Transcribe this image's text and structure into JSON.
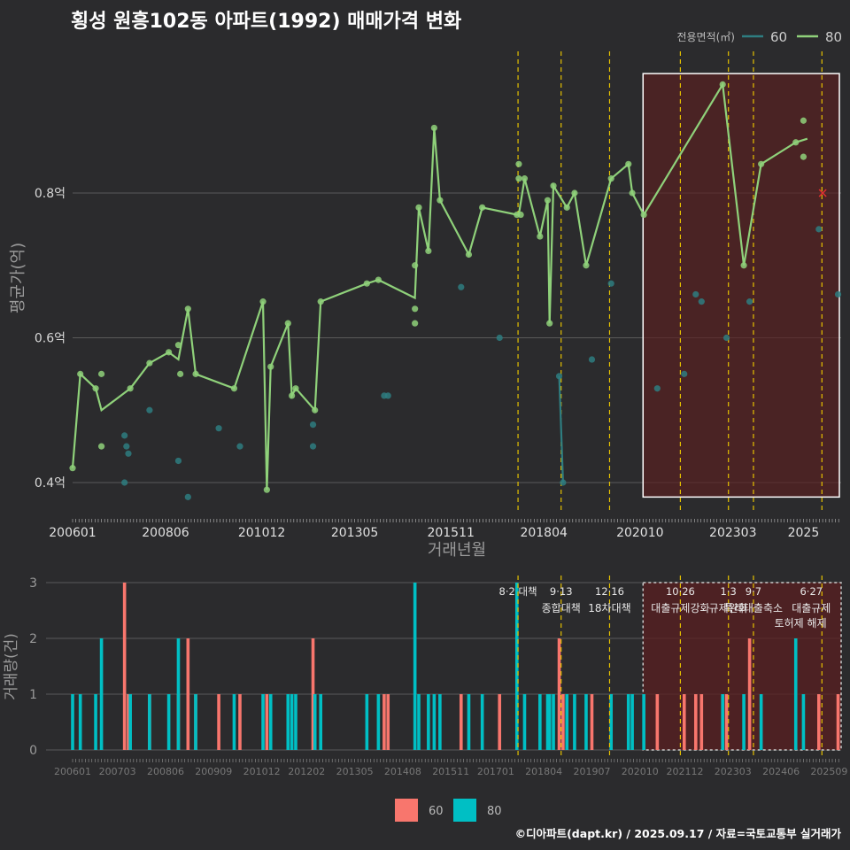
{
  "title": "횡성 원흥102동 아파트(1992) 매매가격 변화",
  "credit": "©디아파트(dapt.kr) / 2025.09.17 / 자료=국토교통부 실거래가",
  "colors": {
    "s60": "#2e7d80",
    "s80": "#8fd17a",
    "bar60": "#f8766d",
    "bar80": "#00bfc4",
    "policy": "#e6c200",
    "highlight": "#5a1f20"
  },
  "chart_data": [
    {
      "type": "line",
      "title": "횡성 원흥102동 아파트(1992) 매매가격 변화",
      "xlabel": "거래년월",
      "ylabel": "평균가(억)",
      "x_tick_labels": [
        "200601",
        "200806",
        "201012",
        "201305",
        "201511",
        "201804",
        "202010",
        "202303",
        "2025"
      ],
      "y_tick_labels": [
        "0.4억",
        "0.6억",
        "0.8억"
      ],
      "ylim": [
        0.35,
        0.98
      ],
      "legend_title": "전용면적(㎡)",
      "legend_position": "top-right",
      "series": [
        {
          "name": "60",
          "points": [
            [
              2007.35,
              0.4
            ],
            [
              2007.35,
              0.465
            ],
            [
              2007.4,
              0.45
            ],
            [
              2007.45,
              0.44
            ],
            [
              2008.0,
              0.5
            ],
            [
              2008.75,
              0.43
            ],
            [
              2009.0,
              0.38
            ],
            [
              2009.8,
              0.475
            ],
            [
              2010.35,
              0.45
            ],
            [
              2012.25,
              0.45
            ],
            [
              2012.25,
              0.48
            ],
            [
              2014.1,
              0.52
            ],
            [
              2014.2,
              0.52
            ],
            [
              2016.1,
              0.67
            ],
            [
              2017.1,
              0.6
            ],
            [
              2018.65,
              0.547
            ],
            [
              2018.75,
              0.4
            ],
            [
              2019.5,
              0.57
            ],
            [
              2020.0,
              0.675
            ],
            [
              2021.2,
              0.53
            ],
            [
              2021.9,
              0.55
            ],
            [
              2022.2,
              0.66
            ],
            [
              2022.35,
              0.65
            ],
            [
              2023.0,
              0.6
            ],
            [
              2023.6,
              0.65
            ],
            [
              2025.4,
              0.75
            ],
            [
              2025.9,
              0.66
            ]
          ],
          "line": [
            [
              2018.65,
              0.547
            ],
            [
              2018.75,
              0.4
            ]
          ]
        },
        {
          "name": "80",
          "points": [
            [
              2006.0,
              0.42
            ],
            [
              2006.2,
              0.55
            ],
            [
              2006.6,
              0.53
            ],
            [
              2006.75,
              0.55
            ],
            [
              2006.75,
              0.45
            ],
            [
              2007.5,
              0.53
            ],
            [
              2008.0,
              0.565
            ],
            [
              2008.5,
              0.58
            ],
            [
              2008.75,
              0.59
            ],
            [
              2008.8,
              0.55
            ],
            [
              2009.0,
              0.64
            ],
            [
              2009.2,
              0.55
            ],
            [
              2010.2,
              0.53
            ],
            [
              2010.95,
              0.65
            ],
            [
              2011.05,
              0.39
            ],
            [
              2011.15,
              0.56
            ],
            [
              2011.6,
              0.62
            ],
            [
              2011.7,
              0.52
            ],
            [
              2011.8,
              0.53
            ],
            [
              2012.3,
              0.5
            ],
            [
              2012.45,
              0.65
            ],
            [
              2013.65,
              0.675
            ],
            [
              2013.95,
              0.68
            ],
            [
              2014.9,
              0.7
            ],
            [
              2014.9,
              0.64
            ],
            [
              2014.9,
              0.62
            ],
            [
              2015.0,
              0.78
            ],
            [
              2015.25,
              0.72
            ],
            [
              2015.4,
              0.89
            ],
            [
              2015.55,
              0.79
            ],
            [
              2016.3,
              0.715
            ],
            [
              2016.65,
              0.78
            ],
            [
              2017.55,
              0.77
            ],
            [
              2017.6,
              0.82
            ],
            [
              2017.6,
              0.84
            ],
            [
              2017.75,
              0.82
            ],
            [
              2017.65,
              0.77
            ],
            [
              2018.15,
              0.74
            ],
            [
              2018.35,
              0.79
            ],
            [
              2018.4,
              0.62
            ],
            [
              2018.5,
              0.81
            ],
            [
              2018.85,
              0.78
            ],
            [
              2019.05,
              0.8
            ],
            [
              2019.35,
              0.7
            ],
            [
              2020.0,
              0.82
            ],
            [
              2020.45,
              0.84
            ],
            [
              2020.55,
              0.8
            ],
            [
              2020.85,
              0.77
            ],
            [
              2022.9,
              0.95
            ],
            [
              2023.45,
              0.7
            ],
            [
              2023.9,
              0.84
            ],
            [
              2024.8,
              0.87
            ],
            [
              2025.0,
              0.9
            ],
            [
              2025.0,
              0.85
            ]
          ],
          "line": [
            [
              2006.0,
              0.42
            ],
            [
              2006.2,
              0.55
            ],
            [
              2006.6,
              0.53
            ],
            [
              2006.75,
              0.5
            ],
            [
              2007.5,
              0.53
            ],
            [
              2008.0,
              0.565
            ],
            [
              2008.5,
              0.58
            ],
            [
              2008.75,
              0.57
            ],
            [
              2009.0,
              0.64
            ],
            [
              2009.2,
              0.55
            ],
            [
              2010.2,
              0.53
            ],
            [
              2010.95,
              0.65
            ],
            [
              2011.05,
              0.39
            ],
            [
              2011.15,
              0.56
            ],
            [
              2011.6,
              0.62
            ],
            [
              2011.7,
              0.52
            ],
            [
              2011.8,
              0.53
            ],
            [
              2012.3,
              0.5
            ],
            [
              2012.45,
              0.65
            ],
            [
              2013.65,
              0.675
            ],
            [
              2013.95,
              0.68
            ],
            [
              2014.9,
              0.655
            ],
            [
              2015.0,
              0.78
            ],
            [
              2015.25,
              0.72
            ],
            [
              2015.4,
              0.89
            ],
            [
              2015.55,
              0.79
            ],
            [
              2016.3,
              0.715
            ],
            [
              2016.65,
              0.78
            ],
            [
              2017.55,
              0.77
            ],
            [
              2017.6,
              0.77
            ],
            [
              2017.75,
              0.82
            ],
            [
              2018.15,
              0.74
            ],
            [
              2018.35,
              0.79
            ],
            [
              2018.4,
              0.62
            ],
            [
              2018.5,
              0.81
            ],
            [
              2018.85,
              0.78
            ],
            [
              2019.05,
              0.8
            ],
            [
              2019.35,
              0.7
            ],
            [
              2020.0,
              0.82
            ],
            [
              2020.45,
              0.84
            ],
            [
              2020.55,
              0.8
            ],
            [
              2020.85,
              0.77
            ],
            [
              2022.9,
              0.95
            ],
            [
              2023.45,
              0.7
            ],
            [
              2023.9,
              0.84
            ],
            [
              2024.8,
              0.87
            ],
            [
              2025.1,
              0.875
            ]
          ]
        }
      ],
      "policy_lines": [
        2017.58,
        2018.7,
        2019.96,
        2021.8,
        2023.05,
        2023.7,
        2025.48
      ],
      "highlight_range": [
        2020.83,
        2025.98
      ],
      "highlight_ylim": [
        0.38,
        0.965
      ],
      "marker_x": {
        "x": 2025.5,
        "y": 0.8
      }
    },
    {
      "type": "bar",
      "xlabel": "",
      "ylabel": "거래량(건)",
      "ylim": [
        0,
        3
      ],
      "y_tick_labels": [
        "0",
        "1",
        "2",
        "3"
      ],
      "x_tick_labels": [
        "200601",
        "200703",
        "200806",
        "200909",
        "201012",
        "201202",
        "201305",
        "201408",
        "201511",
        "201701",
        "201804",
        "201907",
        "202010",
        "202112",
        "202303",
        "202406",
        "202509"
      ],
      "legend": [
        "60",
        "80"
      ],
      "legend_position": "bottom",
      "series": [
        {
          "name": "60",
          "bars": [
            [
              2007.35,
              3
            ],
            [
              2007.45,
              1
            ],
            [
              2008.0,
              1
            ],
            [
              2008.75,
              1
            ],
            [
              2009.0,
              2
            ],
            [
              2009.2,
              1
            ],
            [
              2009.8,
              1
            ],
            [
              2010.35,
              1
            ],
            [
              2011.05,
              1
            ],
            [
              2012.25,
              2
            ],
            [
              2014.1,
              1
            ],
            [
              2014.2,
              1
            ],
            [
              2016.1,
              1
            ],
            [
              2017.1,
              1
            ],
            [
              2018.65,
              2
            ],
            [
              2018.75,
              1
            ],
            [
              2019.5,
              1
            ],
            [
              2020.0,
              1
            ],
            [
              2021.2,
              1
            ],
            [
              2021.9,
              1
            ],
            [
              2022.2,
              1
            ],
            [
              2022.35,
              1
            ],
            [
              2023.0,
              1
            ],
            [
              2023.6,
              2
            ],
            [
              2025.4,
              1
            ],
            [
              2025.9,
              1
            ]
          ]
        },
        {
          "name": "80",
          "bars": [
            [
              2006.0,
              1
            ],
            [
              2006.2,
              1
            ],
            [
              2006.6,
              1
            ],
            [
              2006.75,
              2
            ],
            [
              2007.5,
              1
            ],
            [
              2008.0,
              1
            ],
            [
              2008.5,
              1
            ],
            [
              2008.75,
              2
            ],
            [
              2009.2,
              1
            ],
            [
              2010.2,
              1
            ],
            [
              2010.95,
              1
            ],
            [
              2011.15,
              1
            ],
            [
              2011.6,
              1
            ],
            [
              2011.7,
              1
            ],
            [
              2011.8,
              1
            ],
            [
              2012.3,
              1
            ],
            [
              2012.45,
              1
            ],
            [
              2013.65,
              1
            ],
            [
              2013.95,
              1
            ],
            [
              2014.9,
              3
            ],
            [
              2015.0,
              1
            ],
            [
              2015.25,
              1
            ],
            [
              2015.4,
              1
            ],
            [
              2015.55,
              1
            ],
            [
              2016.3,
              1
            ],
            [
              2016.65,
              1
            ],
            [
              2017.55,
              3
            ],
            [
              2017.75,
              1
            ],
            [
              2018.15,
              1
            ],
            [
              2018.35,
              1
            ],
            [
              2018.4,
              1
            ],
            [
              2018.5,
              1
            ],
            [
              2018.85,
              1
            ],
            [
              2019.05,
              1
            ],
            [
              2019.35,
              1
            ],
            [
              2020.0,
              1
            ],
            [
              2020.45,
              1
            ],
            [
              2020.55,
              1
            ],
            [
              2020.85,
              1
            ],
            [
              2022.9,
              1
            ],
            [
              2023.45,
              1
            ],
            [
              2023.9,
              1
            ],
            [
              2024.8,
              2
            ],
            [
              2025.0,
              1
            ]
          ]
        }
      ],
      "policy_lines": [
        2017.58,
        2018.7,
        2019.96,
        2021.8,
        2023.05,
        2023.7,
        2025.48
      ],
      "policy_labels": [
        {
          "x": 2017.58,
          "date": "8·2 대책",
          "name": ""
        },
        {
          "x": 2018.7,
          "date": "9·13",
          "name": "종합대책"
        },
        {
          "x": 2019.96,
          "date": "12·16",
          "name": "18차대책"
        },
        {
          "x": 2021.8,
          "date": "10·26",
          "name": "대출규제강화"
        },
        {
          "x": 2023.05,
          "date": "1·3",
          "name": "규제완화"
        },
        {
          "x": 2023.7,
          "date": "9·7",
          "name": "특례대출축소"
        },
        {
          "x": 2025.48,
          "date": "6·27",
          "name": "대출규제"
        },
        {
          "x": 2025.2,
          "date": "",
          "name": "토허제 해제"
        }
      ],
      "highlight_range": [
        2020.83,
        2025.98
      ]
    }
  ]
}
